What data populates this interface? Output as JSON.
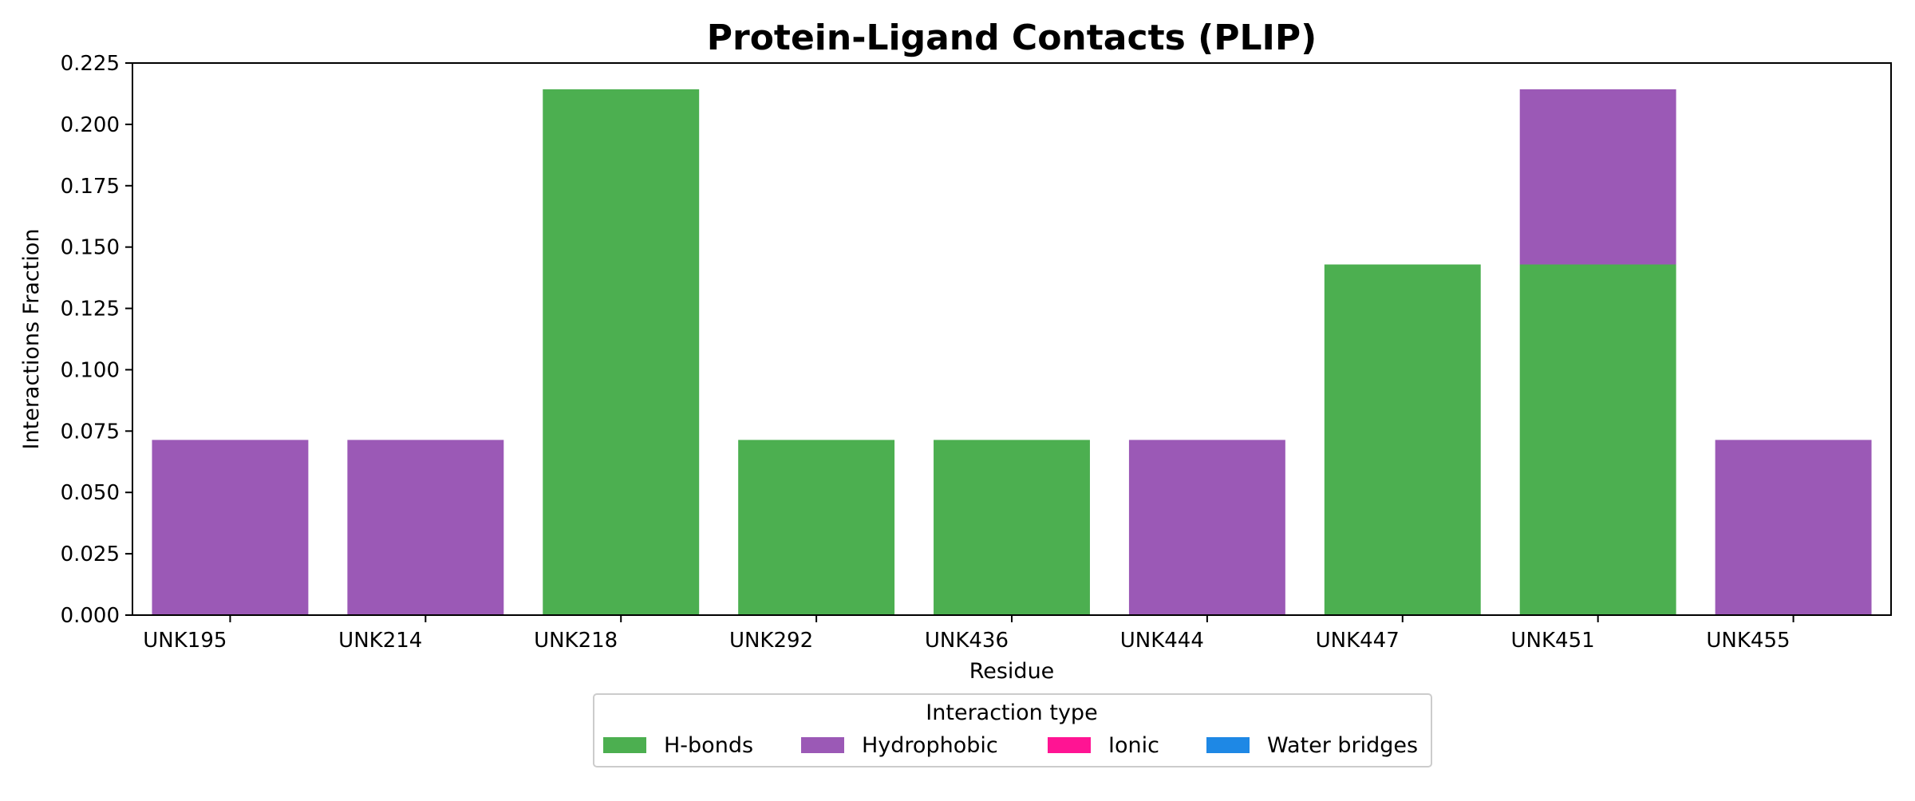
{
  "chart_data": {
    "type": "bar",
    "stacked": true,
    "title": "Protein-Ligand Contacts (PLIP)",
    "xlabel": "Residue",
    "ylabel": "Interactions Fraction",
    "categories": [
      "UNK195",
      "UNK214",
      "UNK218",
      "UNK292",
      "UNK436",
      "UNK444",
      "UNK447",
      "UNK451",
      "UNK455"
    ],
    "ylim": [
      0,
      0.225
    ],
    "yticks": [
      "0.000",
      "0.025",
      "0.050",
      "0.075",
      "0.100",
      "0.125",
      "0.150",
      "0.175",
      "0.200",
      "0.225"
    ],
    "series": [
      {
        "name": "H-bonds",
        "color": "#4caf50",
        "values": [
          0,
          0,
          0.2143,
          0.0714,
          0.0714,
          0,
          0.1429,
          0.1429,
          0
        ]
      },
      {
        "name": "Hydrophobic",
        "color": "#9b59b6",
        "values": [
          0.0714,
          0.0714,
          0,
          0,
          0,
          0.0714,
          0,
          0.0714,
          0.0714
        ]
      },
      {
        "name": "Ionic",
        "color": "#ff1493",
        "values": [
          0,
          0,
          0,
          0,
          0,
          0,
          0,
          0,
          0
        ]
      },
      {
        "name": "Water bridges",
        "color": "#1e88e5",
        "values": [
          0,
          0,
          0,
          0,
          0,
          0,
          0,
          0,
          0
        ]
      }
    ],
    "legend": {
      "title": "Interaction type",
      "placement": "bottom-center"
    },
    "grid": false
  }
}
